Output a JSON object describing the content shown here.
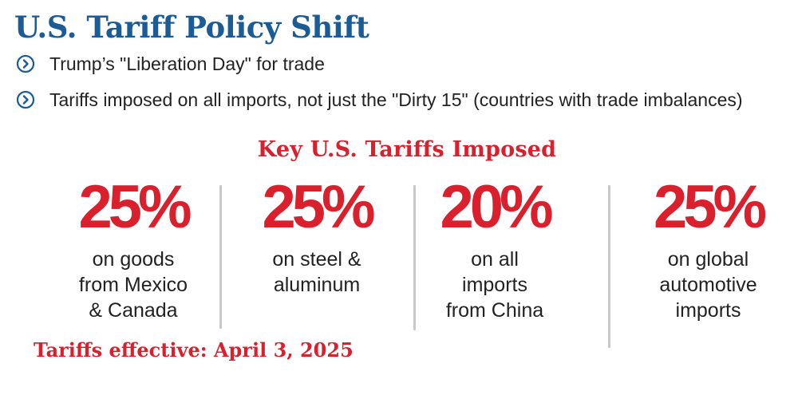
{
  "colors": {
    "title_blue": "#1b5b96",
    "accent_red": "#d9202c",
    "text_dark": "#222222"
  },
  "title": "U.S. Tariff Policy Shift",
  "bullets": [
    {
      "icon": "chevron-right-circle-icon",
      "text": "Trump’s \"Liberation Day\" for trade"
    },
    {
      "icon": "chevron-right-circle-icon",
      "text": "Tariffs imposed on all imports, not just the \"Dirty 15\" (countries with trade imbalances)"
    }
  ],
  "section_title": "Key U.S. Tariffs Imposed",
  "tariffs": [
    {
      "value": "25%",
      "caption_lines": [
        "on goods",
        "from Mexico",
        "& Canada"
      ]
    },
    {
      "value": "25%",
      "caption_lines": [
        "on steel &",
        "aluminum"
      ]
    },
    {
      "value": "20%",
      "caption_lines": [
        "on all",
        "imports",
        "from China"
      ]
    },
    {
      "value": "25%",
      "caption_lines": [
        "on global",
        "automotive",
        "imports"
      ]
    }
  ],
  "effective_note": "Tariffs effective: April 3, 2025"
}
